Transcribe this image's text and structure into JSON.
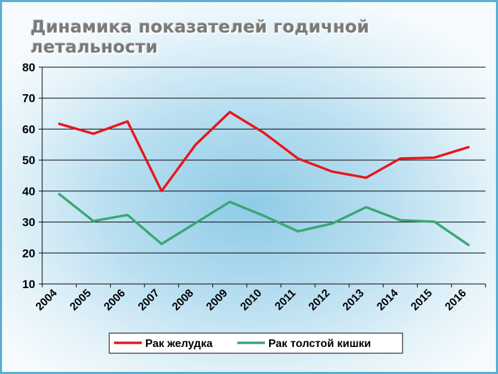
{
  "colors": {
    "frame": "#5aaed0",
    "series_1": "#e8161b",
    "series_2": "#3aa673",
    "grid": "#000000"
  },
  "chart_data": {
    "type": "line",
    "title": "Динамика показателей годичной летальности",
    "categories": [
      "2004",
      "2005",
      "2006",
      "2007",
      "2008",
      "2009",
      "2010",
      "2011",
      "2012",
      "2013",
      "2014",
      "2015",
      "2016"
    ],
    "series": [
      {
        "name": "Рак желудка",
        "values": [
          61.7,
          58.5,
          62.5,
          40.0,
          55.0,
          65.5,
          58.8,
          50.5,
          46.3,
          44.3,
          50.5,
          50.8,
          54.2
        ]
      },
      {
        "name": "Рак толстой кишки",
        "values": [
          39.0,
          30.3,
          32.3,
          22.9,
          29.7,
          36.5,
          32.0,
          27.0,
          29.5,
          34.8,
          30.6,
          30.1,
          22.6
        ]
      }
    ],
    "ylim": [
      10,
      80
    ],
    "yticks": [
      10,
      20,
      30,
      40,
      50,
      60,
      70,
      80
    ],
    "grid": true,
    "legend_position": "bottom"
  }
}
